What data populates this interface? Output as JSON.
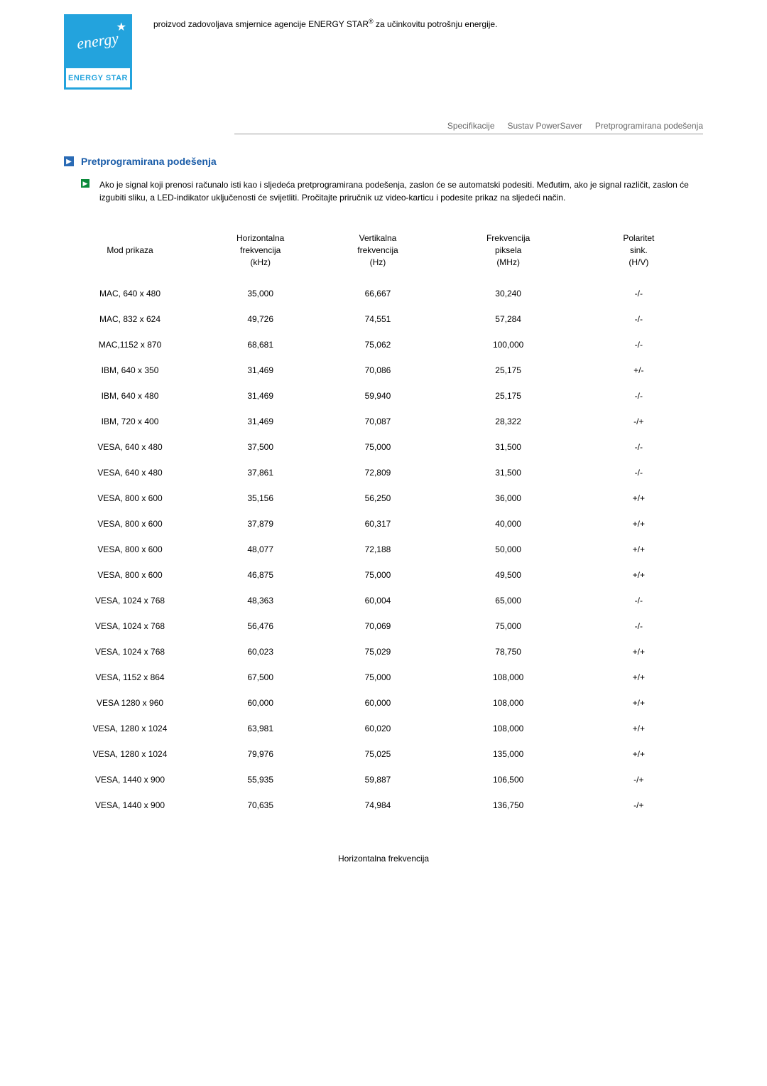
{
  "logo": {
    "script": "energy",
    "bottom": "ENERGY STAR"
  },
  "header_text_before": "proizvod zadovoljava smjernice agencije ENERGY STAR",
  "header_sup": "®",
  "header_text_after": " za učinkovitu potrošnju energije.",
  "tabs": {
    "spec": "Specifikacije",
    "powersaver": "Sustav PowerSaver",
    "preset": "Pretprogramirana podešenja"
  },
  "section_title": "Pretprogramirana podešenja",
  "paragraph": "Ako je signal koji prenosi računalo isti kao i sljedeća pretprogramirana podešenja, zaslon će se automatski podesiti. Međutim, ako je signal različit, zaslon će izgubiti sliku, a LED-indikator uključenosti će svijetliti. Pročitajte priručnik uz video-karticu i podesite prikaz na sljedeći način.",
  "table": {
    "headers": {
      "mode": "Mod prikaza",
      "hfreq": "Horizontalna\nfrekvencija\n(kHz)",
      "vfreq": "Vertikalna\nfrekvencija\n(Hz)",
      "pixel": "Frekvencija\npiksela\n(MHz)",
      "polarity": "Polaritet\nsink.\n(H/V)"
    },
    "rows": [
      {
        "mode": "MAC, 640 x 480",
        "h": "35,000",
        "v": "66,667",
        "p": "30,240",
        "pol": "-/-"
      },
      {
        "mode": "MAC, 832 x 624",
        "h": "49,726",
        "v": "74,551",
        "p": "57,284",
        "pol": "-/-"
      },
      {
        "mode": "MAC,1152 x 870",
        "h": "68,681",
        "v": "75,062",
        "p": "100,000",
        "pol": "-/-"
      },
      {
        "mode": "IBM, 640 x 350",
        "h": "31,469",
        "v": "70,086",
        "p": "25,175",
        "pol": "+/-"
      },
      {
        "mode": "IBM, 640 x 480",
        "h": "31,469",
        "v": "59,940",
        "p": "25,175",
        "pol": "-/-"
      },
      {
        "mode": "IBM, 720 x 400",
        "h": "31,469",
        "v": "70,087",
        "p": "28,322",
        "pol": "-/+"
      },
      {
        "mode": "VESA, 640 x 480",
        "h": "37,500",
        "v": "75,000",
        "p": "31,500",
        "pol": "-/-"
      },
      {
        "mode": "VESA, 640 x 480",
        "h": "37,861",
        "v": "72,809",
        "p": "31,500",
        "pol": "-/-"
      },
      {
        "mode": "VESA, 800 x 600",
        "h": "35,156",
        "v": "56,250",
        "p": "36,000",
        "pol": "+/+"
      },
      {
        "mode": "VESA, 800 x 600",
        "h": "37,879",
        "v": "60,317",
        "p": "40,000",
        "pol": "+/+"
      },
      {
        "mode": "VESA, 800 x 600",
        "h": "48,077",
        "v": "72,188",
        "p": "50,000",
        "pol": "+/+"
      },
      {
        "mode": "VESA, 800 x 600",
        "h": "46,875",
        "v": "75,000",
        "p": "49,500",
        "pol": "+/+"
      },
      {
        "mode": "VESA, 1024 x 768",
        "h": "48,363",
        "v": "60,004",
        "p": "65,000",
        "pol": "-/-"
      },
      {
        "mode": "VESA, 1024 x 768",
        "h": "56,476",
        "v": "70,069",
        "p": "75,000",
        "pol": "-/-"
      },
      {
        "mode": "VESA, 1024 x 768",
        "h": "60,023",
        "v": "75,029",
        "p": "78,750",
        "pol": "+/+"
      },
      {
        "mode": "VESA, 1152 x 864",
        "h": "67,500",
        "v": "75,000",
        "p": "108,000",
        "pol": "+/+"
      },
      {
        "mode": "VESA 1280 x 960",
        "h": "60,000",
        "v": "60,000",
        "p": "108,000",
        "pol": "+/+"
      },
      {
        "mode": "VESA, 1280 x 1024",
        "h": "63,981",
        "v": "60,020",
        "p": "108,000",
        "pol": "+/+"
      },
      {
        "mode": "VESA, 1280 x 1024",
        "h": "79,976",
        "v": "75,025",
        "p": "135,000",
        "pol": "+/+"
      },
      {
        "mode": "VESA, 1440 x 900",
        "h": "55,935",
        "v": "59,887",
        "p": "106,500",
        "pol": "-/+"
      },
      {
        "mode": "VESA, 1440 x 900",
        "h": "70,635",
        "v": "74,984",
        "p": "136,750",
        "pol": "-/+"
      }
    ]
  },
  "footer_label": "Horizontalna frekvencija"
}
